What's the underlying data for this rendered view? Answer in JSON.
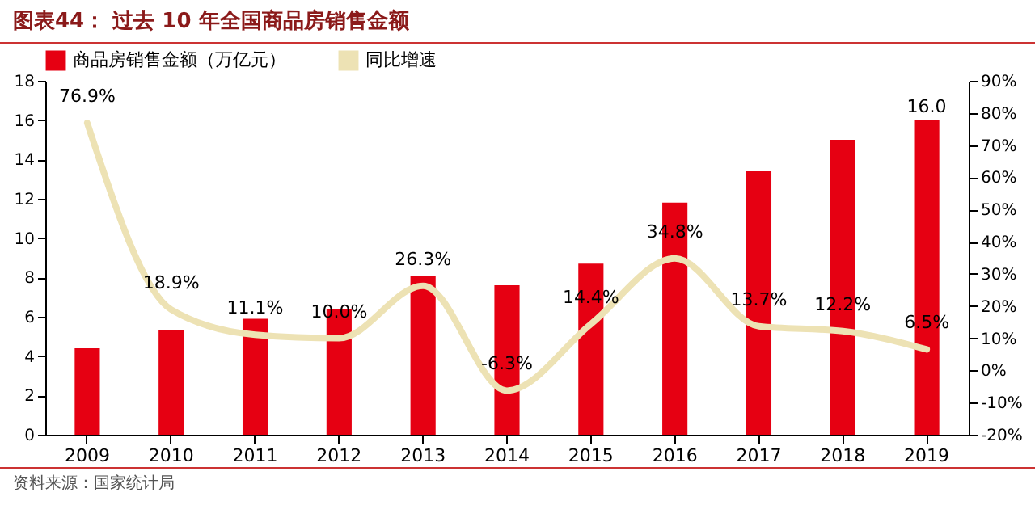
{
  "chart_data": {
    "type": "bar",
    "title": "图表44：  过去 10 年全国商品房销售金额",
    "categories": [
      "2009",
      "2010",
      "2011",
      "2012",
      "2013",
      "2014",
      "2015",
      "2016",
      "2017",
      "2018",
      "2019"
    ],
    "series": [
      {
        "name": "商品房销售金额（万亿元）",
        "color": "#e60012",
        "values": [
          4.4,
          5.3,
          5.9,
          6.4,
          8.1,
          7.6,
          8.7,
          11.8,
          13.4,
          15.0,
          16.0
        ],
        "value_labels": [
          null,
          null,
          null,
          null,
          null,
          null,
          null,
          null,
          null,
          null,
          "16.0"
        ]
      },
      {
        "name": "同比增速",
        "type": "line",
        "axis": "y2",
        "color": "#ede2b4",
        "values": [
          76.9,
          18.9,
          11.1,
          10.0,
          26.3,
          -6.3,
          14.4,
          34.8,
          13.7,
          12.2,
          6.5
        ],
        "value_labels": [
          "76.9%",
          "18.9%",
          "11.1%",
          "10.0%",
          "26.3%",
          "-6.3%",
          "14.4%",
          "34.8%",
          "13.7%",
          "12.2%",
          "6.5%"
        ]
      }
    ],
    "ylim": [
      0,
      18
    ],
    "yticks": [
      0,
      2,
      4,
      6,
      8,
      10,
      12,
      14,
      16,
      18
    ],
    "y2lim": [
      -20,
      90
    ],
    "y2ticks": [
      {
        "value": -20,
        "label": "-20%"
      },
      {
        "value": -10,
        "label": "-10%"
      },
      {
        "value": 0,
        "label": "0%"
      },
      {
        "value": 10,
        "label": "10%"
      },
      {
        "value": 20,
        "label": "20%"
      },
      {
        "value": 30,
        "label": "30%"
      },
      {
        "value": 40,
        "label": "40%"
      },
      {
        "value": 50,
        "label": "50%"
      },
      {
        "value": 60,
        "label": "60%"
      },
      {
        "value": 70,
        "label": "70%"
      },
      {
        "value": 80,
        "label": "80%"
      },
      {
        "value": 90,
        "label": "90%"
      }
    ],
    "legend": "top",
    "grid": false,
    "line_style": "solid",
    "annotations": [
      "资料来源：国家统计局"
    ]
  }
}
